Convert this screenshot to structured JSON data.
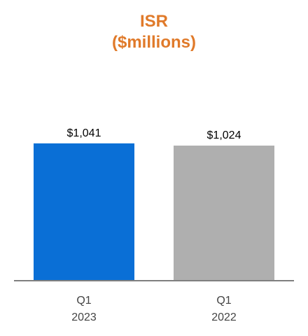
{
  "chart_data": {
    "type": "bar",
    "title": "ISR",
    "subtitle": "($millions)",
    "categories": [
      {
        "line1": "Q1",
        "line2": "2023"
      },
      {
        "line1": "Q1",
        "line2": "2022"
      }
    ],
    "values": [
      1041,
      1024
    ],
    "data_labels": [
      "$1,041",
      "$1,024"
    ],
    "bar_colors": [
      "#0a6fd6",
      "#afafaf"
    ],
    "title_color": "#e07a2a",
    "axis_color": "#7f7f7f",
    "ylim": [
      0,
      1600
    ],
    "grid": false,
    "legend": "none",
    "xlabel": "",
    "ylabel": ""
  }
}
